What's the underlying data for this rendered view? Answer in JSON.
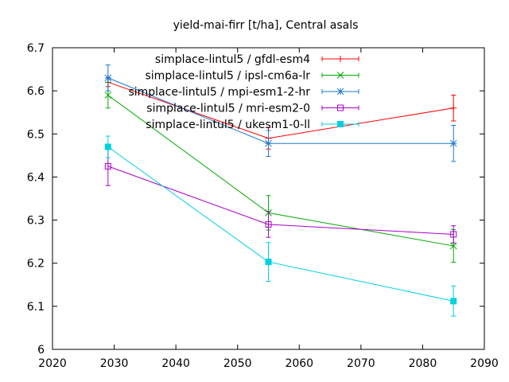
{
  "chart_data": {
    "type": "line",
    "title": "yield-mai-firr [t/ha], Central asals",
    "xlabel": "",
    "ylabel": "",
    "xlim": [
      2020,
      2090
    ],
    "ylim": [
      6.0,
      6.7
    ],
    "x_ticks": [
      "2020",
      "2030",
      "2040",
      "2050",
      "2060",
      "2070",
      "2080",
      "2090"
    ],
    "y_ticks": [
      "6",
      "6.1",
      "6.2",
      "6.3",
      "6.4",
      "6.5",
      "6.6",
      "6.7"
    ],
    "x_tick_values": [
      2020,
      2030,
      2040,
      2050,
      2060,
      2070,
      2080,
      2090
    ],
    "y_tick_values": [
      6.0,
      6.1,
      6.2,
      6.3,
      6.4,
      6.5,
      6.6,
      6.7
    ],
    "grid": false,
    "legend_position": "top-right",
    "x": [
      2029,
      2055,
      2085
    ],
    "series": [
      {
        "name": "simplace-lintul5 / gfdl-esm4",
        "color": "#ff0000",
        "marker": "plus",
        "values": [
          6.62,
          6.49,
          6.56
        ],
        "errors": [
          0.01,
          0.025,
          0.03
        ]
      },
      {
        "name": "simplace-lintul5 / ipsl-cm6a-lr",
        "color": "#00aa00",
        "marker": "cross",
        "values": [
          6.59,
          6.317,
          6.24
        ],
        "errors": [
          0.03,
          0.04,
          0.038
        ]
      },
      {
        "name": "simplace-lintul5 / mpi-esm1-2-hr",
        "color": "#1e78d0",
        "marker": "star",
        "values": [
          6.63,
          6.478,
          6.478
        ],
        "errors": [
          0.03,
          0.03,
          0.042
        ]
      },
      {
        "name": "simplace-lintul5 / mri-esm2-0",
        "color": "#aa00cc",
        "marker": "square-open",
        "values": [
          6.425,
          6.29,
          6.267
        ],
        "errors": [
          0.045,
          0.03,
          0.02
        ]
      },
      {
        "name": "simplace-lintul5 / ukesm1-0-ll",
        "color": "#00d0e0",
        "marker": "square-filled",
        "values": [
          6.47,
          6.203,
          6.112
        ],
        "errors": [
          0.025,
          0.045,
          0.035
        ]
      }
    ]
  }
}
